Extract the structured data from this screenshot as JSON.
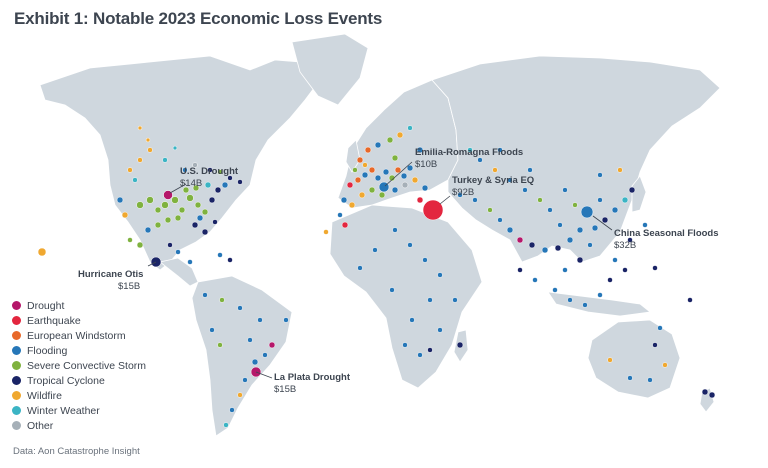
{
  "title": "Exhibit 1: Notable 2023 Economic Loss Events",
  "source": "Data: Aon Catastrophe Insight",
  "legend": [
    {
      "label": "Drought",
      "color": "#b5176a"
    },
    {
      "label": "Earthquake",
      "color": "#e3263f"
    },
    {
      "label": "European Windstorm",
      "color": "#e8692a"
    },
    {
      "label": "Flooding",
      "color": "#2677b8"
    },
    {
      "label": "Severe Convective Storm",
      "color": "#7fb23f"
    },
    {
      "label": "Tropical Cyclone",
      "color": "#1a2466"
    },
    {
      "label": "Wildfire",
      "color": "#f0a830"
    },
    {
      "label": "Winter Weather",
      "color": "#3bb4c4"
    },
    {
      "label": "Other",
      "color": "#a6b0b8"
    }
  ],
  "callouts": [
    {
      "name": "U.S. Drought",
      "value": "$14B"
    },
    {
      "name": "Hurricane Otis",
      "value": "$15B"
    },
    {
      "name": "La Plata Drought",
      "value": "$15B"
    },
    {
      "name": "Emilia-Romagna Floods",
      "value": "$10B"
    },
    {
      "name": "Turkey & Syria EQ",
      "value": "$92B"
    },
    {
      "name": "China Seasonal Floods",
      "value": "$32B"
    }
  ]
}
